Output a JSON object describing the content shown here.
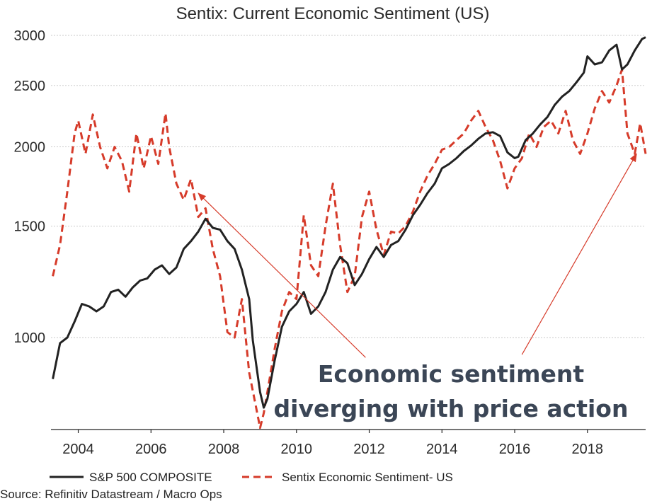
{
  "chart_data": {
    "type": "line",
    "title": "Sentix: Current Economic Sentiment (US)",
    "xlabel": "",
    "ylabel": "",
    "y_scale": "log",
    "ylim": [
      760,
      3000
    ],
    "xlim": [
      2003.25,
      2019.6
    ],
    "yticks": [
      1000,
      1500,
      2000,
      2500,
      3000
    ],
    "xticks": [
      2004,
      2006,
      2008,
      2010,
      2012,
      2014,
      2016,
      2018
    ],
    "grid": true,
    "legend_position": "bottom",
    "series": [
      {
        "name": "S&P 500 COMPOSITE",
        "style": "solid",
        "color": "#222222",
        "x": [
          2003.3,
          2003.5,
          2003.7,
          2003.9,
          2004.1,
          2004.3,
          2004.5,
          2004.7,
          2004.9,
          2005.1,
          2005.3,
          2005.5,
          2005.7,
          2005.9,
          2006.1,
          2006.3,
          2006.5,
          2006.7,
          2006.9,
          2007.1,
          2007.3,
          2007.5,
          2007.7,
          2007.9,
          2008.1,
          2008.3,
          2008.5,
          2008.7,
          2008.8,
          2008.9,
          2009.0,
          2009.1,
          2009.2,
          2009.4,
          2009.6,
          2009.8,
          2010.0,
          2010.2,
          2010.4,
          2010.6,
          2010.8,
          2011.0,
          2011.2,
          2011.4,
          2011.6,
          2011.8,
          2012.0,
          2012.2,
          2012.4,
          2012.6,
          2012.8,
          2013.0,
          2013.2,
          2013.4,
          2013.6,
          2013.8,
          2014.0,
          2014.2,
          2014.4,
          2014.6,
          2014.8,
          2015.0,
          2015.2,
          2015.4,
          2015.6,
          2015.8,
          2016.0,
          2016.1,
          2016.3,
          2016.5,
          2016.7,
          2016.9,
          2017.1,
          2017.3,
          2017.5,
          2017.7,
          2017.9,
          2018.0,
          2018.2,
          2018.4,
          2018.6,
          2018.8,
          2018.95,
          2019.1,
          2019.3,
          2019.5,
          2019.6
        ],
        "values": [
          860,
          980,
          1000,
          1060,
          1130,
          1120,
          1100,
          1120,
          1180,
          1190,
          1160,
          1200,
          1230,
          1240,
          1280,
          1300,
          1260,
          1290,
          1380,
          1420,
          1470,
          1540,
          1490,
          1480,
          1420,
          1380,
          1280,
          1150,
          990,
          900,
          820,
          775,
          800,
          920,
          1040,
          1100,
          1130,
          1180,
          1090,
          1120,
          1180,
          1280,
          1340,
          1310,
          1210,
          1260,
          1330,
          1390,
          1340,
          1400,
          1420,
          1480,
          1560,
          1620,
          1690,
          1750,
          1850,
          1880,
          1920,
          1970,
          2010,
          2060,
          2100,
          2110,
          2080,
          1960,
          1920,
          1930,
          2050,
          2100,
          2170,
          2230,
          2330,
          2400,
          2450,
          2530,
          2620,
          2780,
          2700,
          2720,
          2840,
          2900,
          2650,
          2700,
          2840,
          2960,
          2980
        ]
      },
      {
        "name": "Sentix Economic Sentiment- US",
        "style": "dashed",
        "color": "#d63b2a",
        "x": [
          2003.3,
          2003.5,
          2003.7,
          2003.9,
          2004.0,
          2004.2,
          2004.4,
          2004.6,
          2004.8,
          2005.0,
          2005.2,
          2005.4,
          2005.6,
          2005.8,
          2006.0,
          2006.2,
          2006.4,
          2006.5,
          2006.7,
          2006.9,
          2007.1,
          2007.3,
          2007.5,
          2007.7,
          2007.9,
          2008.1,
          2008.3,
          2008.5,
          2008.7,
          2008.9,
          2009.0,
          2009.1,
          2009.2,
          2009.4,
          2009.6,
          2009.8,
          2010.0,
          2010.2,
          2010.4,
          2010.6,
          2010.8,
          2011.0,
          2011.2,
          2011.4,
          2011.6,
          2011.8,
          2012.0,
          2012.2,
          2012.4,
          2012.6,
          2012.8,
          2013.0,
          2013.2,
          2013.4,
          2013.6,
          2013.8,
          2014.0,
          2014.2,
          2014.4,
          2014.6,
          2014.8,
          2015.0,
          2015.2,
          2015.4,
          2015.6,
          2015.8,
          2016.0,
          2016.2,
          2016.4,
          2016.6,
          2016.8,
          2017.0,
          2017.2,
          2017.4,
          2017.6,
          2017.8,
          2018.0,
          2018.2,
          2018.4,
          2018.6,
          2018.8,
          2018.95,
          2019.1,
          2019.3,
          2019.45,
          2019.6
        ],
        "values": [
          1250,
          1400,
          1700,
          2100,
          2200,
          1950,
          2250,
          2000,
          1850,
          2000,
          1900,
          1700,
          2100,
          1850,
          2080,
          1880,
          2260,
          2000,
          1750,
          1650,
          1780,
          1550,
          1600,
          1380,
          1250,
          1020,
          1000,
          1150,
          880,
          770,
          720,
          760,
          820,
          960,
          1100,
          1180,
          1150,
          1560,
          1300,
          1250,
          1500,
          1750,
          1400,
          1180,
          1250,
          1550,
          1700,
          1480,
          1350,
          1470,
          1460,
          1500,
          1580,
          1700,
          1800,
          1880,
          1980,
          2000,
          2050,
          2100,
          2200,
          2280,
          2150,
          2050,
          1900,
          1720,
          1850,
          1920,
          2100,
          2000,
          2150,
          2200,
          2100,
          2280,
          2050,
          1950,
          2100,
          2300,
          2450,
          2350,
          2500,
          2650,
          2100,
          1950,
          2180,
          1950
        ]
      }
    ],
    "annotations": {
      "arrow1": {
        "from": [
          2011.9,
          930
        ],
        "to": [
          2007.3,
          1690
        ]
      },
      "arrow2": {
        "from": [
          2016.2,
          940
        ],
        "to": [
          2019.35,
          1950
        ]
      },
      "text_line1": "Economic sentiment",
      "text_line2": "diverging with price action"
    }
  },
  "footer": {
    "source": "Source: Refinitiv Datastream / Macro Ops"
  }
}
